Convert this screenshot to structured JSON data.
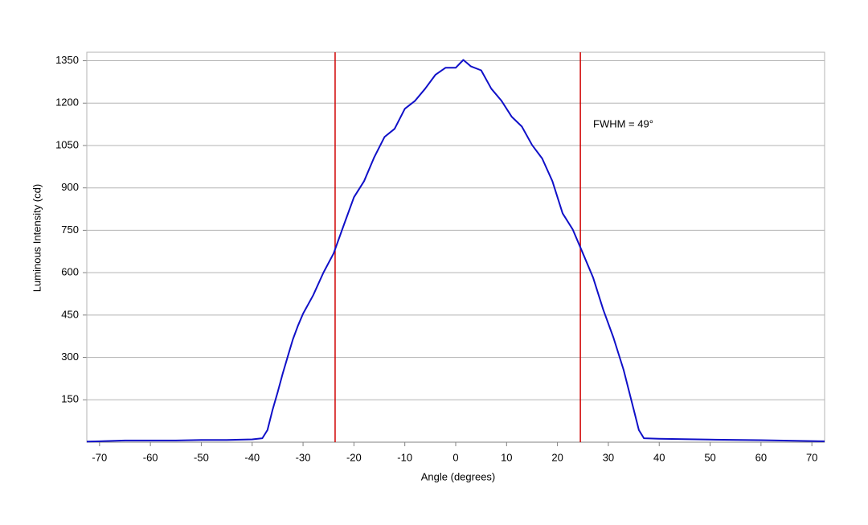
{
  "chart_data": {
    "type": "line",
    "x_label": "Angle (degrees)",
    "y_label": "Luminous Intensity (cd)",
    "annotation": "FWHM = 49°",
    "x": [
      -72.5,
      -70,
      -65,
      -60,
      -55,
      -50,
      -45,
      -40,
      -38,
      -37,
      -36,
      -35,
      -34,
      -33,
      -32,
      -31,
      -30,
      -28,
      -26,
      -24,
      -22,
      -20,
      -18,
      -16,
      -14,
      -12,
      -10,
      -8,
      -6,
      -4,
      -2,
      0,
      1.5,
      3,
      5,
      7,
      9,
      11,
      13,
      15,
      17,
      19,
      21,
      23,
      25,
      27,
      29,
      31,
      33,
      35,
      36,
      37,
      40,
      50,
      60,
      70,
      72.5
    ],
    "series": [
      {
        "name": "Luminous Intensity",
        "color": "#1010c8",
        "values": [
          2,
          3,
          6,
          6,
          6,
          8,
          8,
          10,
          14,
          43,
          114,
          176,
          242,
          304,
          364,
          412,
          455,
          520,
          600,
          668,
          768,
          867,
          924,
          1009,
          1080,
          1109,
          1180,
          1208,
          1251,
          1300,
          1325,
          1325,
          1353,
          1330,
          1316,
          1251,
          1208,
          1152,
          1117,
          1052,
          1004,
          924,
          810,
          753,
          668,
          583,
          469,
          370,
          256,
          114,
          43,
          14,
          12,
          9,
          7,
          4,
          3
        ]
      }
    ],
    "vlines": [
      {
        "value": -23.7,
        "color": "#d00000"
      },
      {
        "value": 24.5,
        "color": "#d00000"
      }
    ],
    "xlim": [
      -72.5,
      72.5
    ],
    "xticks": [
      -70,
      -60,
      -50,
      -40,
      -30,
      -20,
      -10,
      0,
      10,
      20,
      30,
      40,
      50,
      60,
      70
    ],
    "ylim": [
      0,
      1380
    ],
    "yticks": [
      150,
      300,
      450,
      600,
      750,
      900,
      1050,
      1200,
      1350
    ],
    "grid": true
  }
}
